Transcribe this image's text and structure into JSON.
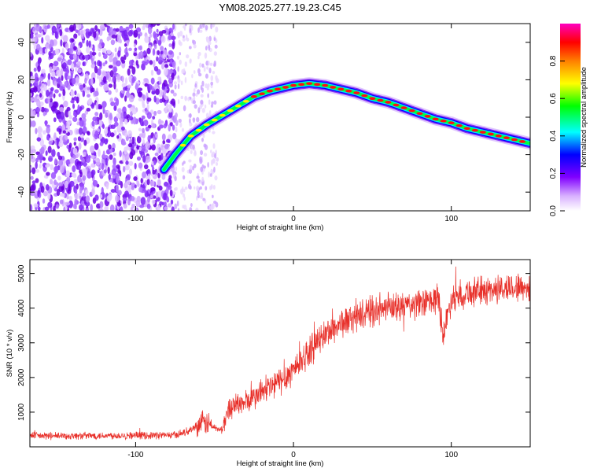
{
  "title": "YM08.2025.277.19.23.C45",
  "chart_data": [
    {
      "type": "heatmap",
      "xlabel": "Height of straight line (km)",
      "ylabel": "Frequency (Hz)",
      "xlim": [
        -167,
        150
      ],
      "ylim": [
        -50,
        50
      ],
      "xticks": [
        -100,
        0,
        100
      ],
      "xtick_labels": [
        "-100",
        "0",
        "100"
      ],
      "yticks": [
        -40,
        -20,
        0,
        20,
        40
      ],
      "ytick_labels": [
        "-40",
        "-20",
        "0",
        "20",
        "40"
      ],
      "grid": false,
      "colorbar": {
        "label": "Normalized spectral amplitude",
        "range": [
          0,
          1
        ],
        "ticks": [
          0.0,
          0.2,
          0.4,
          0.6,
          0.8
        ],
        "tick_labels": [
          "0.0",
          "0.2",
          "0.4",
          "0.6",
          "0.8"
        ],
        "colormap": [
          "#ffffff",
          "#a000ff",
          "#0000ff",
          "#00ffff",
          "#00ff00",
          "#ffff00",
          "#ff8000",
          "#ff0000",
          "#ff00a0"
        ]
      },
      "ridge": {
        "x": [
          -82,
          -75,
          -65,
          -55,
          -45,
          -35,
          -25,
          -15,
          -5,
          0,
          10,
          20,
          30,
          40,
          50,
          60,
          70,
          80,
          90,
          100,
          110,
          120,
          130,
          140,
          150
        ],
        "y": [
          -28,
          -20,
          -10,
          -4,
          1,
          6,
          11,
          14,
          16,
          17,
          18,
          17,
          15,
          13,
          10,
          8,
          5,
          2,
          -1,
          -3,
          -6,
          -8,
          -10,
          -12,
          -14
        ]
      }
    },
    {
      "type": "line",
      "xlabel": "Height of straight line (km)",
      "ylabel": "SNR (10 * v/v)",
      "xlim": [
        -167,
        150
      ],
      "ylim": [
        0,
        5400
      ],
      "xticks": [
        -100,
        0,
        100
      ],
      "xtick_labels": [
        "-100",
        "0",
        "100"
      ],
      "yticks": [
        1000,
        2000,
        3000,
        4000,
        5000
      ],
      "ytick_labels": [
        "1000",
        "2000",
        "3000",
        "4000",
        "5000"
      ],
      "grid": false,
      "series": [
        {
          "color": "#e8302a",
          "x": [
            -167,
            -150,
            -130,
            -110,
            -90,
            -75,
            -70,
            -65,
            -60,
            -55,
            -50,
            -45,
            -42,
            -38,
            -34,
            -30,
            -25,
            -20,
            -15,
            -10,
            -5,
            0,
            5,
            10,
            15,
            20,
            25,
            30,
            40,
            50,
            60,
            70,
            80,
            88,
            92,
            95,
            100,
            110,
            120,
            130,
            140,
            150
          ],
          "y": [
            320,
            310,
            320,
            330,
            330,
            340,
            400,
            500,
            650,
            700,
            550,
            480,
            1000,
            1250,
            1200,
            1300,
            1400,
            1600,
            1700,
            1850,
            2000,
            2250,
            2500,
            2750,
            3000,
            3250,
            3400,
            3550,
            3750,
            3900,
            4000,
            4050,
            4100,
            4200,
            4300,
            3200,
            4300,
            4450,
            4500,
            4550,
            4600,
            4600
          ]
        }
      ]
    }
  ]
}
